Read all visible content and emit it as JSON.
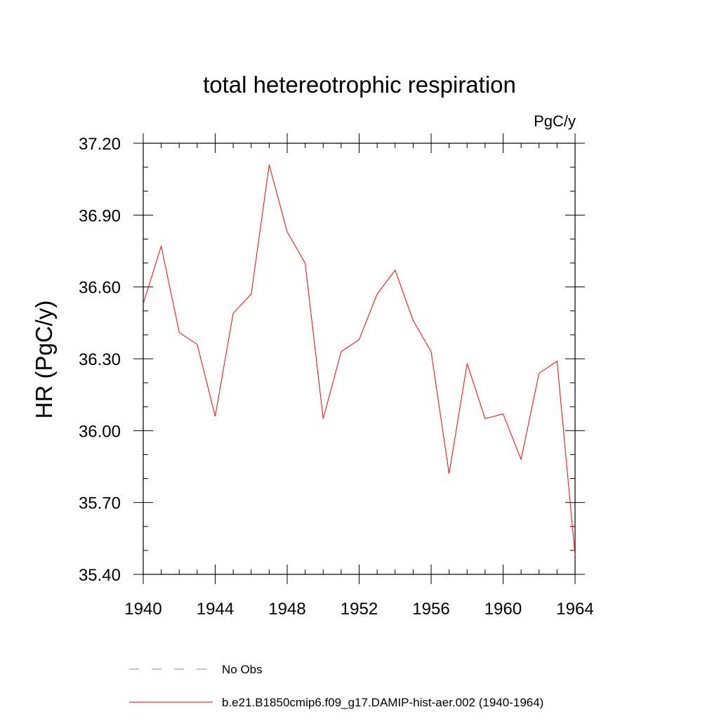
{
  "chart_data": {
    "type": "line",
    "title": "total hetereotrophic respiration",
    "units_label": "PgC/y",
    "ylabel": "HR  (PgC/y)",
    "xlabel": "",
    "xlim": [
      1940,
      1964
    ],
    "ylim": [
      35.4,
      37.2
    ],
    "x_ticks": [
      1940,
      1944,
      1948,
      1952,
      1956,
      1960,
      1964
    ],
    "x_tick_labels": [
      "1940",
      "1944",
      "1948",
      "1952",
      "1956",
      "1960",
      "1964"
    ],
    "y_ticks": [
      35.4,
      35.7,
      36.0,
      36.3,
      36.6,
      36.9,
      37.2
    ],
    "y_tick_labels": [
      "35.40",
      "35.70",
      "36.00",
      "36.30",
      "36.60",
      "36.90",
      "37.20"
    ],
    "grid": false,
    "legend_position": "bottom",
    "series": [
      {
        "name": "b.e21.B1850cmip6.f09_g17.DAMIP-hist-aer.002 (1940-1964)",
        "color": "#ff0000",
        "style": "solid",
        "x": [
          1940,
          1941,
          1942,
          1943,
          1944,
          1945,
          1946,
          1947,
          1948,
          1949,
          1950,
          1951,
          1952,
          1953,
          1954,
          1955,
          1956,
          1957,
          1958,
          1959,
          1960,
          1961,
          1962,
          1963,
          1964
        ],
        "values": [
          36.53,
          36.77,
          36.41,
          36.36,
          36.06,
          36.49,
          36.57,
          37.11,
          36.83,
          36.7,
          36.05,
          36.33,
          36.38,
          36.57,
          36.67,
          36.46,
          36.33,
          35.82,
          36.28,
          36.05,
          36.07,
          35.88,
          36.24,
          36.29,
          35.48
        ]
      }
    ],
    "legend": [
      {
        "name": "No Obs",
        "color": "#8080c8",
        "style": "dashed"
      },
      {
        "name": "b.e21.B1850cmip6.f09_g17.DAMIP-hist-aer.002 (1940-1964)",
        "color": "#ff0000",
        "style": "solid"
      }
    ]
  }
}
